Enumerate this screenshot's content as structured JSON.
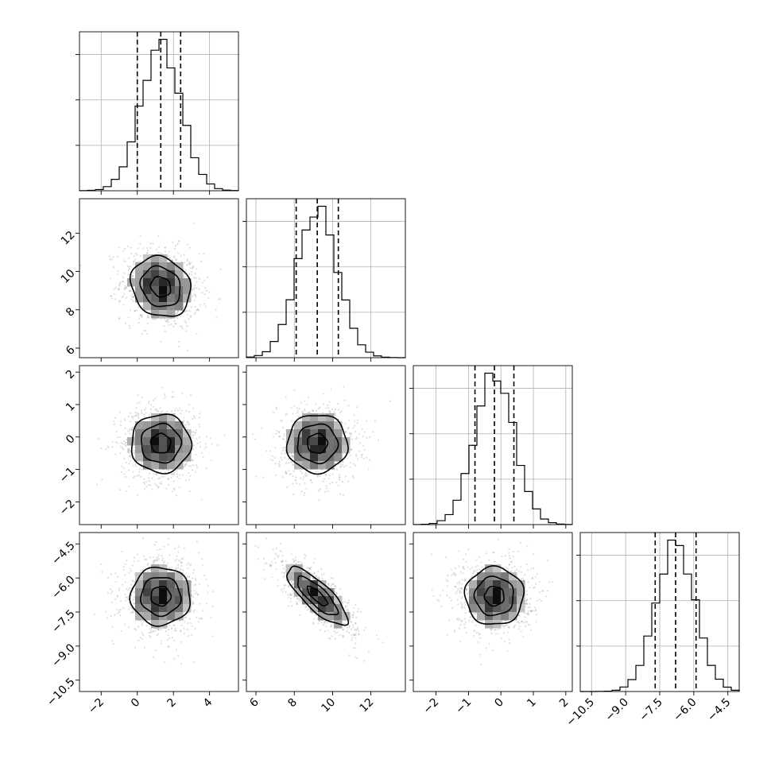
{
  "chart_data": {
    "type": "corner",
    "title": "",
    "colors": {
      "ink": "#000000",
      "grid": "#b0b0b0",
      "scatter": "#8a8a8a"
    },
    "grid": true,
    "parameters": [
      {
        "label": "",
        "mean": 1.3,
        "sigma": 1.1,
        "range": [
          -3.2,
          5.6
        ],
        "quantiles": [
          0.0,
          1.3,
          2.4
        ],
        "ticks": [
          {
            "v": -2,
            "t": "−2"
          },
          {
            "v": 0,
            "t": "0"
          },
          {
            "v": 2,
            "t": "2"
          },
          {
            "v": 4,
            "t": "4"
          }
        ]
      },
      {
        "label": "",
        "mean": 9.2,
        "sigma": 1.05,
        "range": [
          5.5,
          13.8
        ],
        "quantiles": [
          8.1,
          9.2,
          10.3
        ],
        "ticks": [
          {
            "v": 6,
            "t": "6"
          },
          {
            "v": 8,
            "t": "8"
          },
          {
            "v": 10,
            "t": "10"
          },
          {
            "v": 12,
            "t": "12"
          }
        ]
      },
      {
        "label": "",
        "mean": -0.2,
        "sigma": 0.6,
        "range": [
          -2.7,
          2.2
        ],
        "quantiles": [
          -0.8,
          -0.2,
          0.4
        ],
        "ticks": [
          {
            "v": -2,
            "t": "−2"
          },
          {
            "v": -1,
            "t": "−1"
          },
          {
            "v": 0,
            "t": "0"
          },
          {
            "v": 1,
            "t": "1"
          },
          {
            "v": 2,
            "t": "2"
          }
        ]
      },
      {
        "label": "",
        "mean": -6.8,
        "sigma": 0.85,
        "range": [
          -11.0,
          -4.0
        ],
        "quantiles": [
          -7.7,
          -6.8,
          -5.9
        ],
        "ticks": [
          {
            "v": -10.5,
            "t": "−10.5"
          },
          {
            "v": -9.0,
            "t": "−9.0"
          },
          {
            "v": -7.5,
            "t": "−7.5"
          },
          {
            "v": -6.0,
            "t": "−6.0"
          },
          {
            "v": -4.5,
            "t": "−4.5"
          }
        ]
      }
    ],
    "correlations": [
      [
        1.0,
        -0.15,
        0.0,
        0.0
      ],
      [
        -0.15,
        1.0,
        0.0,
        -0.8
      ],
      [
        0.0,
        0.0,
        1.0,
        0.0
      ],
      [
        0.0,
        -0.8,
        0.0,
        1.0
      ]
    ]
  }
}
